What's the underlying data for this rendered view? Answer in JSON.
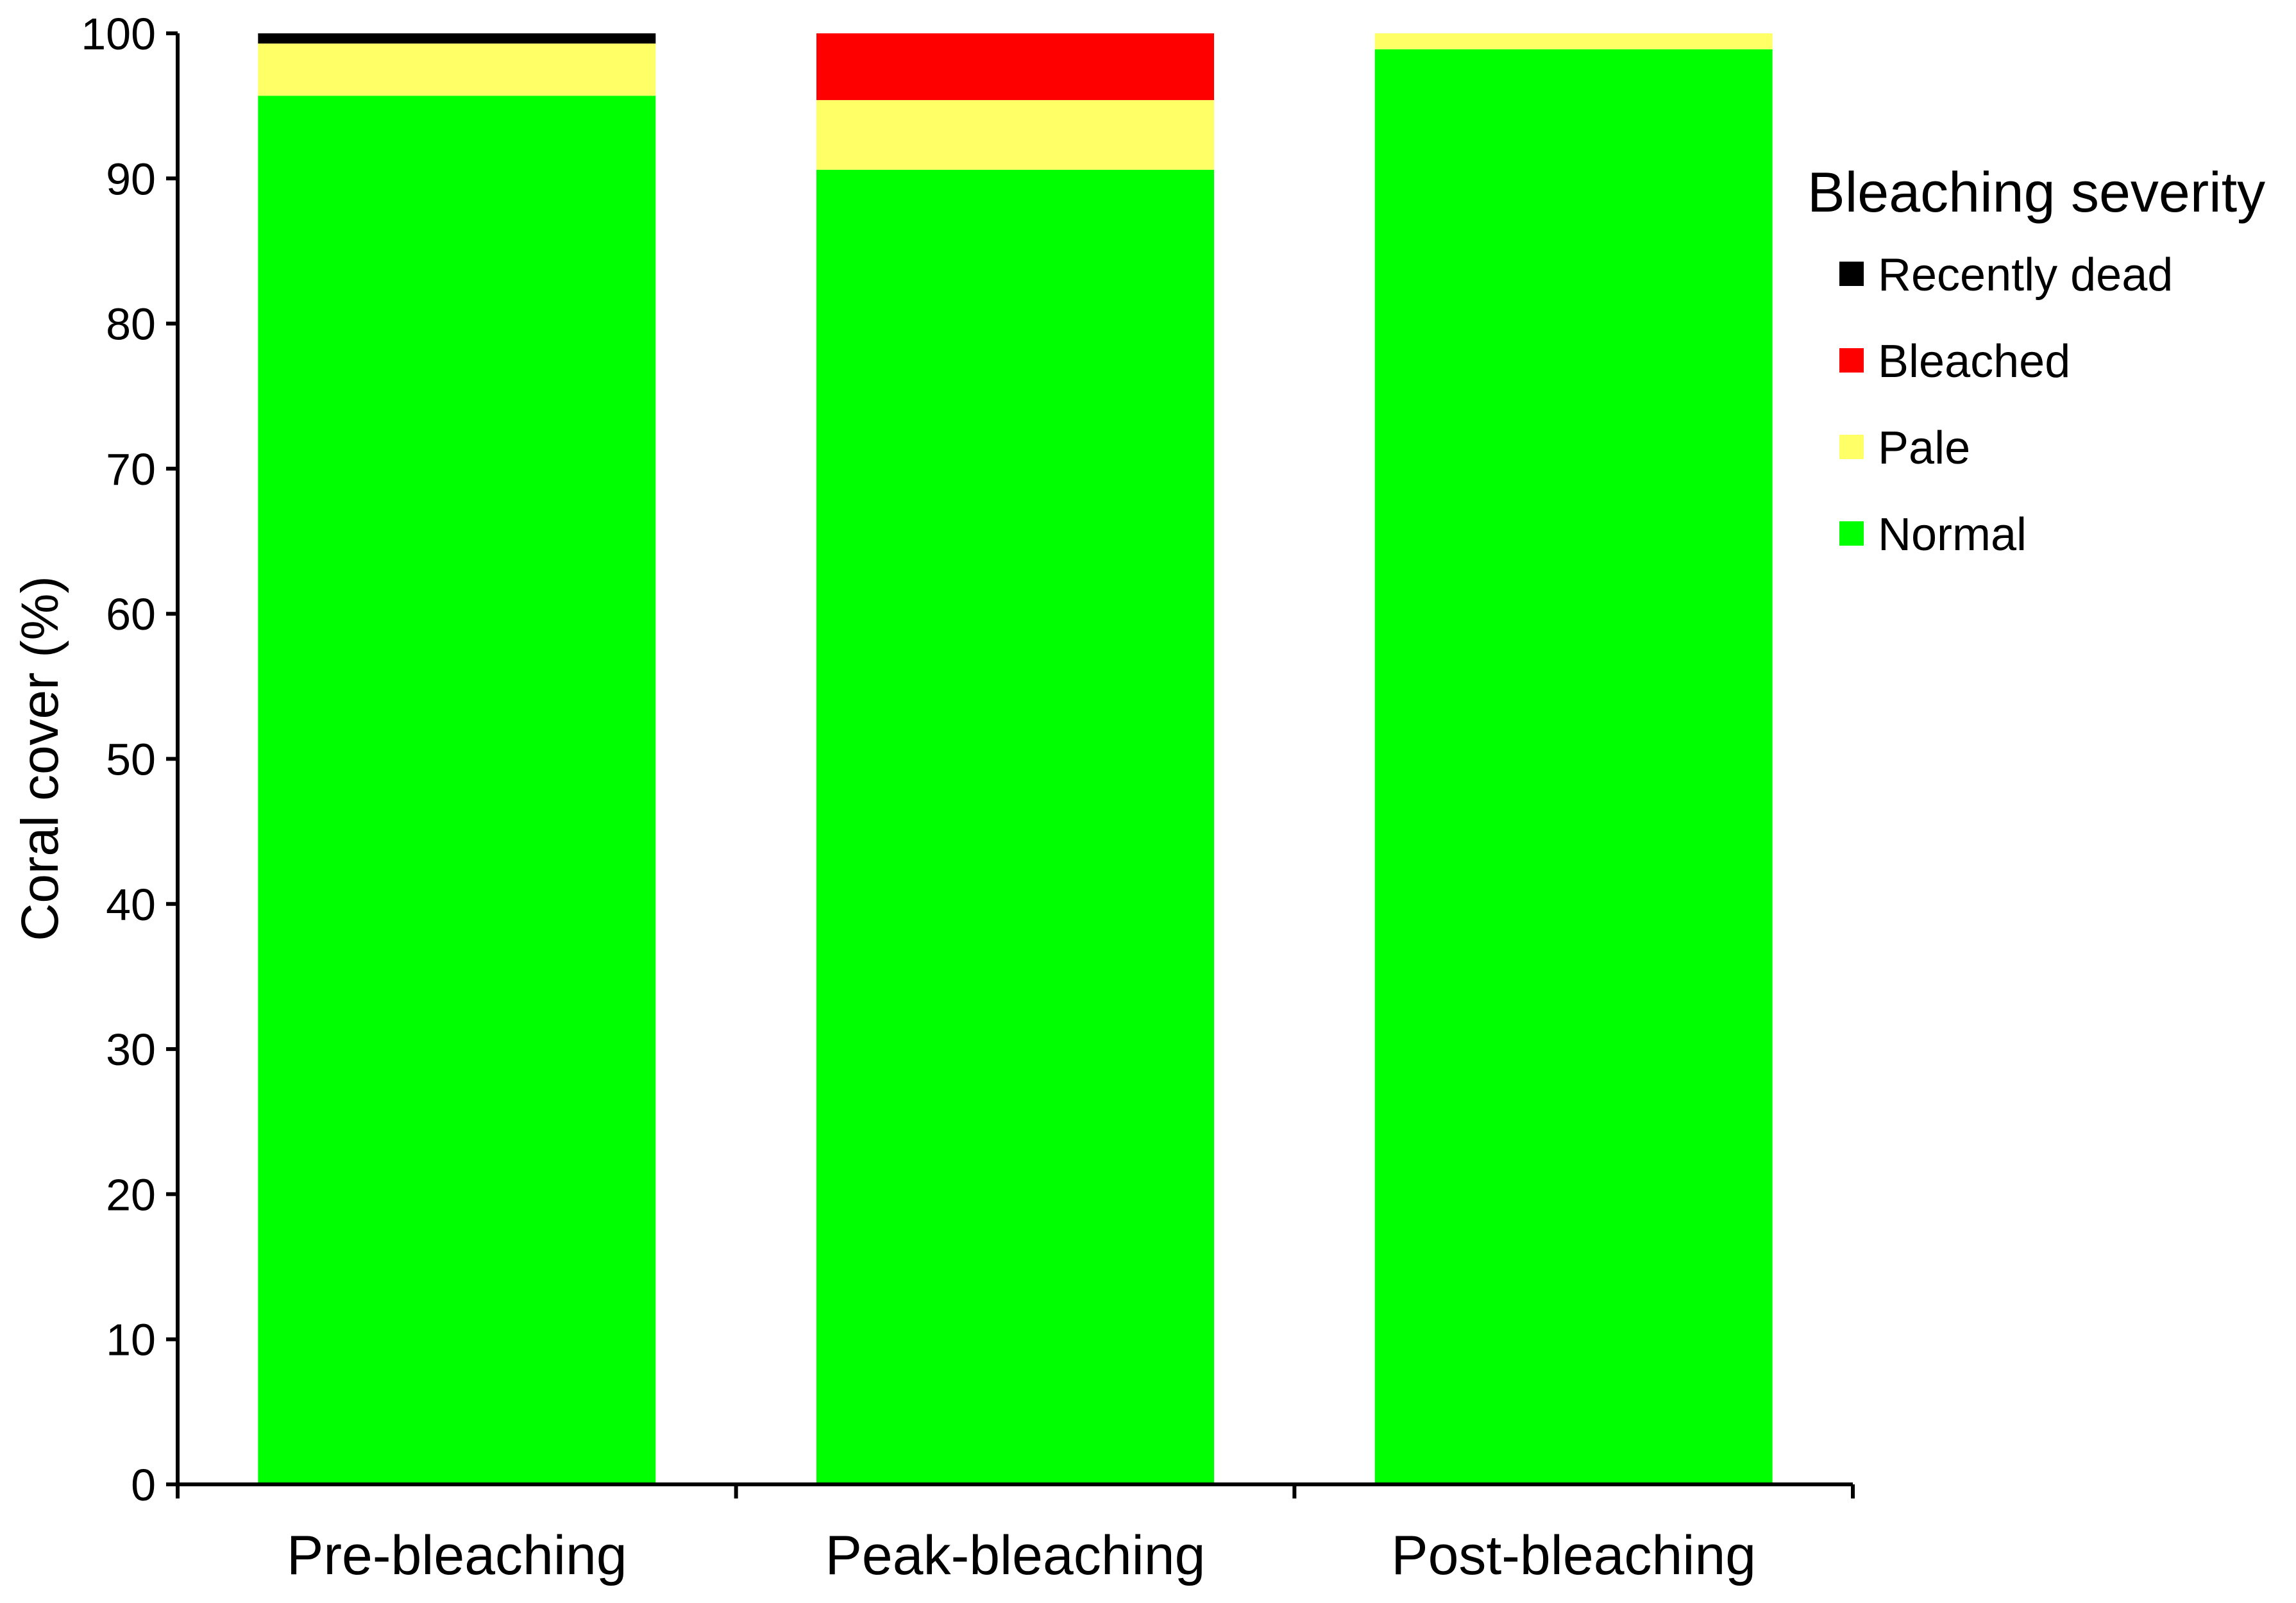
{
  "chart_data": {
    "type": "bar",
    "stacked": true,
    "categories": [
      "Pre-bleaching",
      "Peak-bleaching",
      "Post-bleaching"
    ],
    "series": [
      {
        "name": "Normal",
        "color": "#00ff00",
        "values": [
          95.7,
          90.6,
          98.9
        ]
      },
      {
        "name": "Pale",
        "color": "#ffff66",
        "values": [
          3.6,
          4.8,
          1.1
        ]
      },
      {
        "name": "Bleached",
        "color": "#ff0000",
        "values": [
          0.0,
          4.6,
          0.0
        ]
      },
      {
        "name": "Recently dead",
        "color": "#000000",
        "values": [
          0.7,
          0.0,
          0.0
        ]
      }
    ],
    "title": "",
    "xlabel": "",
    "ylabel": "Coral cover (%)",
    "ylim": [
      0,
      100
    ],
    "yticks": [
      0,
      10,
      20,
      30,
      40,
      50,
      60,
      70,
      80,
      90,
      100
    ],
    "grid": false,
    "legend": {
      "title": "Bleaching severity",
      "placement": "right",
      "order": [
        "Recently dead",
        "Bleached",
        "Pale",
        "Normal"
      ]
    }
  }
}
